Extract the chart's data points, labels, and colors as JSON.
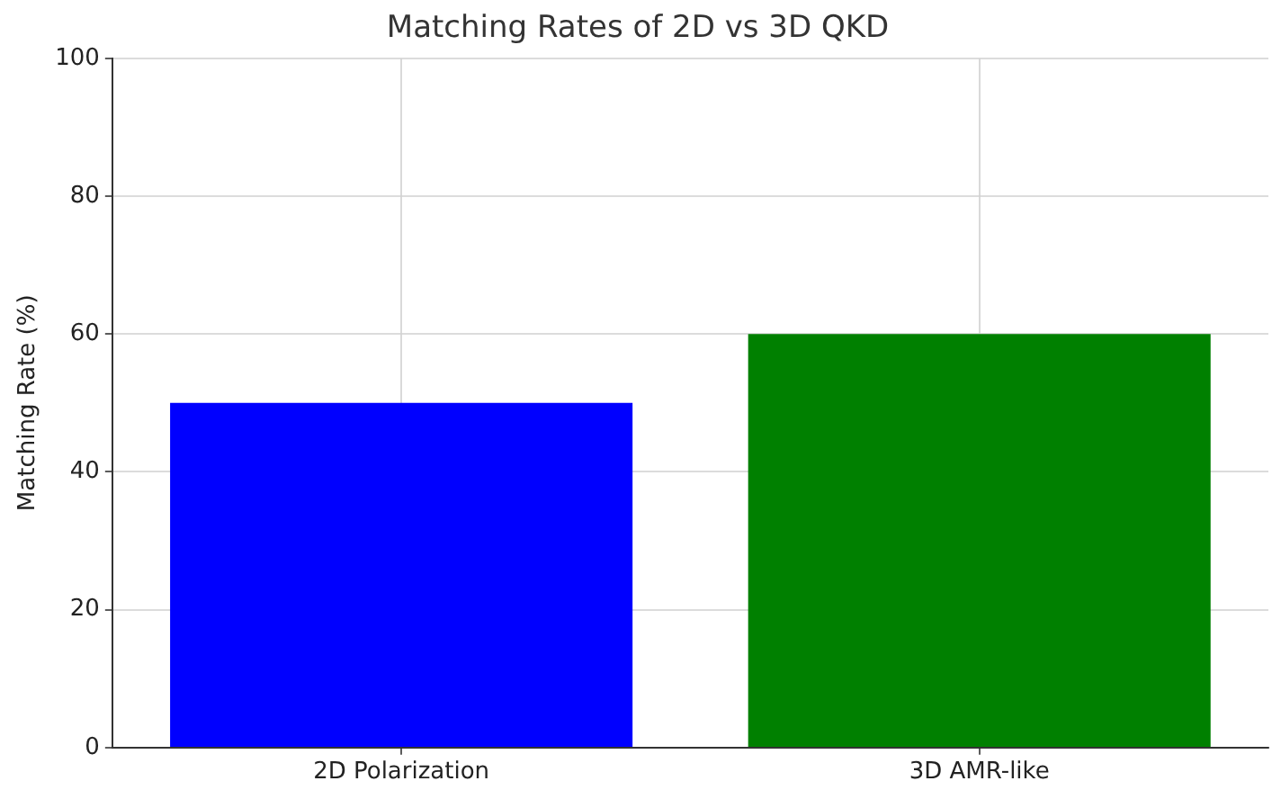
{
  "chart_data": {
    "type": "bar",
    "title": "Matching Rates of 2D vs 3D QKD",
    "ylabel": "Matching Rate (%)",
    "categories": [
      "2D Polarization",
      "3D AMR-like"
    ],
    "values": [
      50,
      60
    ],
    "colors": [
      "#0000ff",
      "#008000"
    ],
    "ylim": [
      0,
      100
    ],
    "yticks": [
      0,
      20,
      40,
      60,
      80,
      100
    ],
    "grid": true
  }
}
